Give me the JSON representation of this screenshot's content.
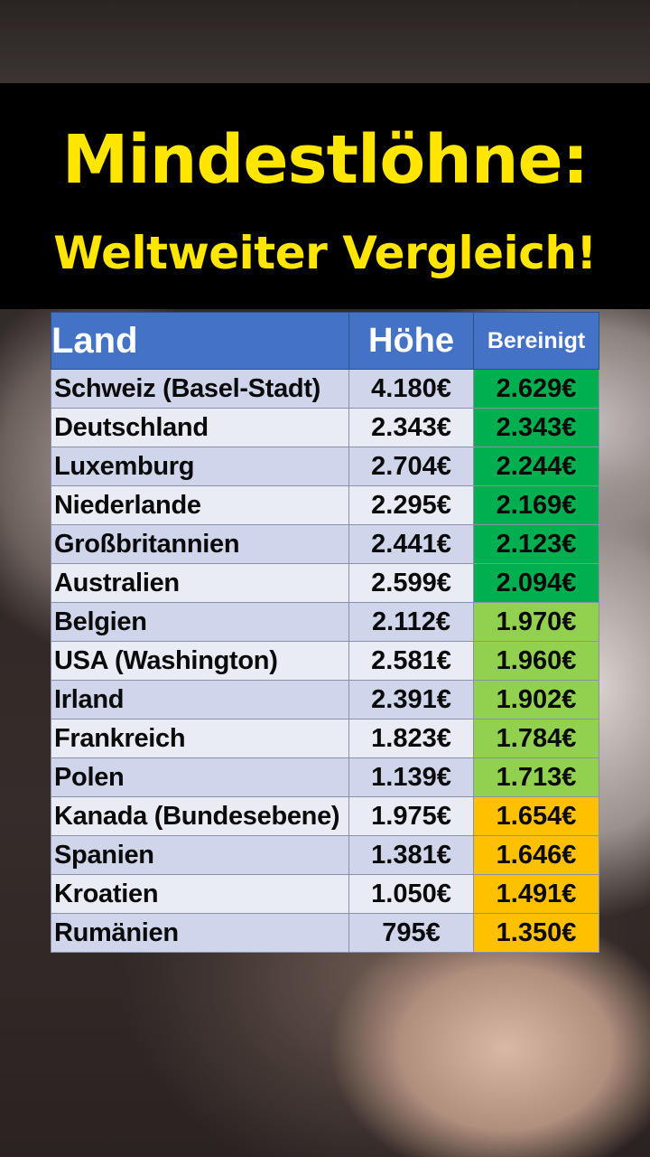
{
  "title": {
    "line1": "Mindestlöhne:",
    "line2": "Weltweiter Vergleich!"
  },
  "table": {
    "headers": {
      "land": "Land",
      "hoehe": "Höhe",
      "bereinigt": "Bereinigt"
    },
    "colors": {
      "header": "#4472c4",
      "dark_green": "#00b050",
      "light_green": "#92d050",
      "amber": "#ffc000",
      "title_yellow": "#ffe600"
    },
    "rows": [
      {
        "land": "Schweiz (Basel-Stadt)",
        "hoehe": "4.180€",
        "bereinigt": "2.629€",
        "tier": "green"
      },
      {
        "land": "Deutschland",
        "hoehe": "2.343€",
        "bereinigt": "2.343€",
        "tier": "green"
      },
      {
        "land": "Luxemburg",
        "hoehe": "2.704€",
        "bereinigt": "2.244€",
        "tier": "green"
      },
      {
        "land": "Niederlande",
        "hoehe": "2.295€",
        "bereinigt": "2.169€",
        "tier": "green"
      },
      {
        "land": "Großbritannien",
        "hoehe": "2.441€",
        "bereinigt": "2.123€",
        "tier": "green"
      },
      {
        "land": "Australien",
        "hoehe": "2.599€",
        "bereinigt": "2.094€",
        "tier": "green"
      },
      {
        "land": "Belgien",
        "hoehe": "2.112€",
        "bereinigt": "1.970€",
        "tier": "lightgreen"
      },
      {
        "land": "USA (Washington)",
        "hoehe": "2.581€",
        "bereinigt": "1.960€",
        "tier": "lightgreen"
      },
      {
        "land": "Irland",
        "hoehe": "2.391€",
        "bereinigt": "1.902€",
        "tier": "lightgreen"
      },
      {
        "land": "Frankreich",
        "hoehe": "1.823€",
        "bereinigt": "1.784€",
        "tier": "lightgreen"
      },
      {
        "land": "Polen",
        "hoehe": "1.139€",
        "bereinigt": "1.713€",
        "tier": "lightgreen"
      },
      {
        "land": "Kanada (Bundesebene)",
        "hoehe": "1.975€",
        "bereinigt": "1.654€",
        "tier": "amber"
      },
      {
        "land": "Spanien",
        "hoehe": "1.381€",
        "bereinigt": "1.646€",
        "tier": "amber"
      },
      {
        "land": "Kroatien",
        "hoehe": "1.050€",
        "bereinigt": "1.491€",
        "tier": "amber"
      },
      {
        "land": "Rumänien",
        "hoehe": "795€",
        "bereinigt": "1.350€",
        "tier": "amber"
      }
    ]
  }
}
